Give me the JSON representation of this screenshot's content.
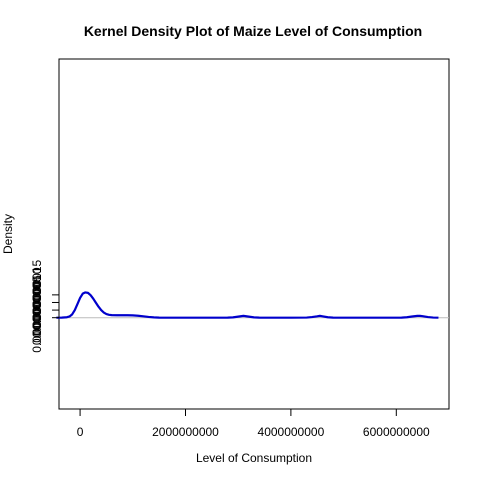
{
  "chart_data": {
    "type": "line",
    "title": "Kernel Density Plot of Maize   Level of Consumption",
    "xlabel": "Level of Consumption",
    "ylabel": "Density",
    "xlim": [
      -400000000,
      7000000000
    ],
    "ylim": [
      -6e-11,
      1.7e-10
    ],
    "x_ticks": [
      0,
      2000000000,
      4000000000,
      6000000000
    ],
    "x_tick_labels": [
      "0",
      "2000000000",
      "4000000000",
      "6000000000"
    ],
    "y_ticks": [
      0,
      5e-12,
      1e-11,
      1.5e-11
    ],
    "y_tick_labels": [
      "0.000000000",
      "0.000000005",
      "0.000000010",
      "0.000000015"
    ],
    "grid": false,
    "baseline": 0,
    "line_color": "#0000cc",
    "baseline_color": "#bbbbbb",
    "series": [
      {
        "x": [
          -450000000,
          -350000000,
          -250000000,
          -200000000,
          -150000000,
          -100000000,
          -50000000,
          0,
          50000000,
          100000000,
          150000000,
          200000000,
          250000000,
          300000000,
          350000000,
          400000000,
          450000000,
          500000000,
          550000000,
          600000000,
          700000000,
          800000000,
          900000000,
          1000000000,
          1100000000,
          1200000000,
          1300000000,
          1400000000,
          1500000000,
          1800000000,
          2200000000,
          2600000000,
          2800000000,
          2900000000,
          3000000000,
          3100000000,
          3200000000,
          3300000000,
          3400000000,
          3600000000,
          4000000000,
          4300000000,
          4400000000,
          4500000000,
          4550000000,
          4600000000,
          4700000000,
          4800000000,
          5000000000,
          5500000000,
          6100000000,
          6200000000,
          6300000000,
          6400000000,
          6450000000,
          6500000000,
          6600000000,
          6700000000,
          6800000000
        ],
        "y": [
          0.0,
          5e-14,
          3e-13,
          8e-13,
          2.2e-12,
          5e-12,
          9e-12,
          1.3e-11,
          1.58e-11,
          1.66e-11,
          1.63e-11,
          1.48e-11,
          1.25e-11,
          9.8e-12,
          7.2e-12,
          5e-12,
          3.4e-12,
          2.4e-12,
          1.9e-12,
          1.7e-12,
          1.6e-12,
          1.6e-12,
          1.6e-12,
          1.5e-12,
          1.3e-12,
          9e-13,
          5e-13,
          2e-13,
          5e-14,
          0.0,
          0.0,
          0.0,
          5e-14,
          2e-13,
          7e-13,
          1.2e-12,
          7e-13,
          2e-13,
          5e-14,
          0.0,
          0.0,
          8e-14,
          4e-13,
          9e-13,
          1.2e-12,
          9e-13,
          3e-13,
          5e-14,
          0.0,
          0.0,
          5e-14,
          3e-13,
          8e-13,
          1.2e-12,
          1.2e-12,
          1e-12,
          4e-13,
          1e-13,
          0.0
        ]
      }
    ]
  }
}
